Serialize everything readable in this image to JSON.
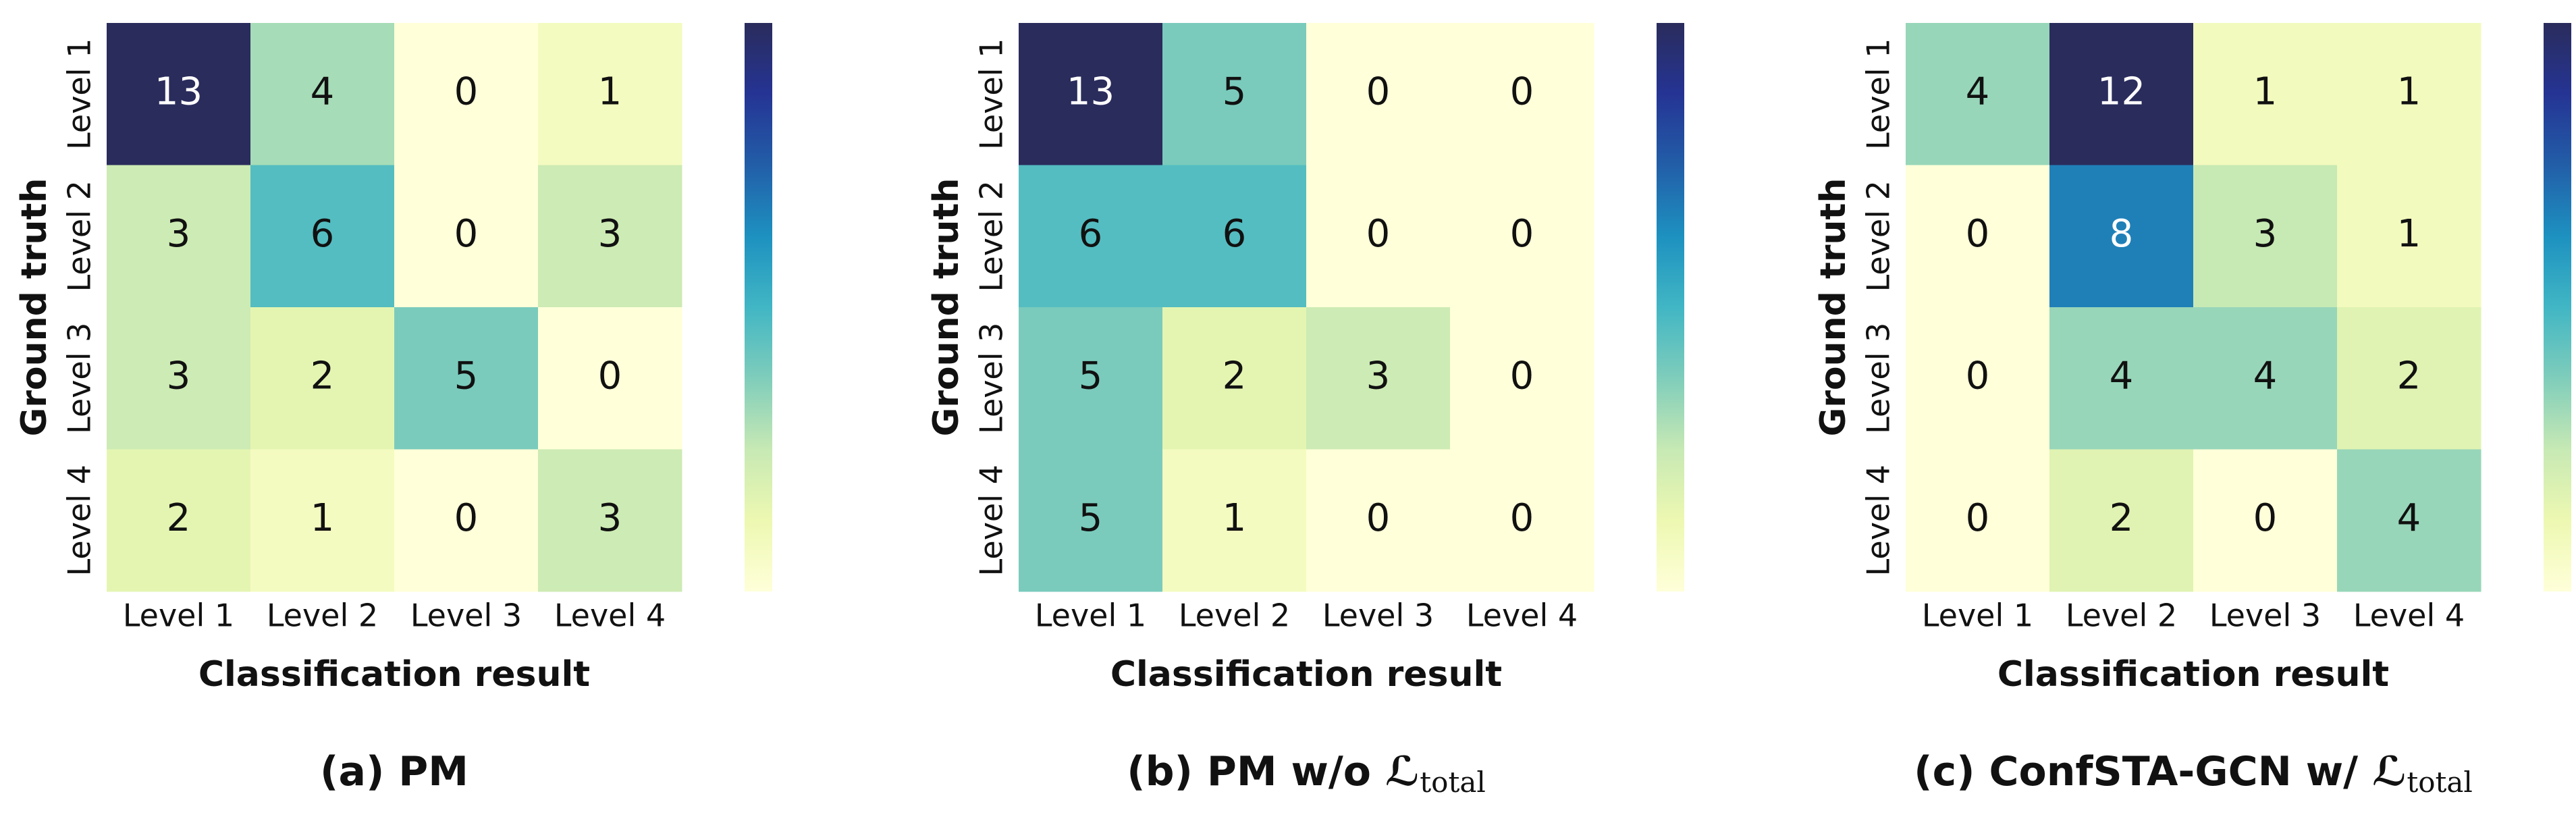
{
  "chart_data": [
    {
      "type": "heatmap",
      "title": "(a) PM",
      "xlabel": "Classification result",
      "ylabel": "Ground truth",
      "x_categories": [
        "Level 1",
        "Level 2",
        "Level 3",
        "Level 4"
      ],
      "y_categories": [
        "Level 1",
        "Level 2",
        "Level 3",
        "Level 4"
      ],
      "values": [
        [
          13,
          4,
          0,
          1
        ],
        [
          3,
          6,
          0,
          3
        ],
        [
          3,
          2,
          5,
          0
        ],
        [
          2,
          1,
          0,
          3
        ]
      ],
      "zlim": [
        0,
        13
      ],
      "colormap": "YlGnBu",
      "colorbar": true
    },
    {
      "type": "heatmap",
      "title": "(b) PM w/o ℒ",
      "title_subscript": "total",
      "xlabel": "Classification result",
      "ylabel": "Ground truth",
      "x_categories": [
        "Level 1",
        "Level 2",
        "Level 3",
        "Level 4"
      ],
      "y_categories": [
        "Level 1",
        "Level 2",
        "Level 3",
        "Level 4"
      ],
      "values": [
        [
          13,
          5,
          0,
          0
        ],
        [
          6,
          6,
          0,
          0
        ],
        [
          5,
          2,
          3,
          0
        ],
        [
          5,
          1,
          0,
          0
        ]
      ],
      "zlim": [
        0,
        13
      ],
      "colormap": "YlGnBu",
      "colorbar": true
    },
    {
      "type": "heatmap",
      "title": "(c) ConfSTA-GCN w/ ℒ",
      "title_subscript": "total",
      "xlabel": "Classification result",
      "ylabel": "Ground truth",
      "x_categories": [
        "Level 1",
        "Level 2",
        "Level 3",
        "Level 4"
      ],
      "y_categories": [
        "Level 1",
        "Level 2",
        "Level 3",
        "Level 4"
      ],
      "values": [
        [
          4,
          12,
          1,
          1
        ],
        [
          0,
          8,
          3,
          1
        ],
        [
          0,
          4,
          4,
          2
        ],
        [
          0,
          2,
          0,
          4
        ]
      ],
      "zlim": [
        0,
        12
      ],
      "colormap": "YlGnBu",
      "colorbar": true
    }
  ]
}
